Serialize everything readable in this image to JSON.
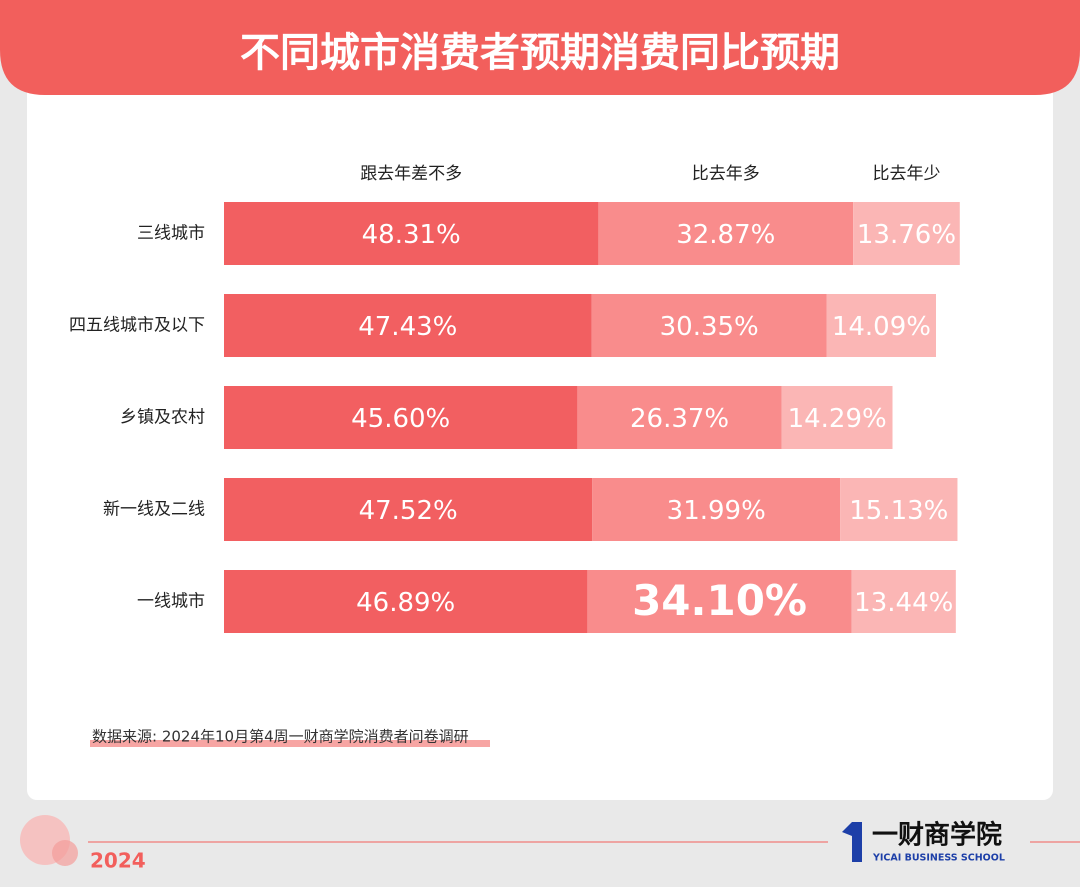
{
  "chart_data": {
    "type": "stacked-bar-horizontal",
    "title": "不同城市消费者预期消费同比预期",
    "categories": [
      "三线城市",
      "四五线城市及以下",
      "乡镇及农村",
      "新一线及二线",
      "一线城市"
    ],
    "series": [
      {
        "name": "跟去年差不多",
        "color": "#f25f61",
        "values": [
          48.31,
          47.43,
          45.6,
          47.52,
          46.89
        ],
        "value_labels": [
          "48.31%",
          "47.43%",
          "45.60%",
          "47.52%",
          "46.89%"
        ]
      },
      {
        "name": "比去年多",
        "color": "#f98c8c",
        "values": [
          32.87,
          30.35,
          26.37,
          31.99,
          34.1
        ],
        "value_labels": [
          "32.87%",
          "30.35%",
          "26.37%",
          "31.99%",
          "34.10%"
        ]
      },
      {
        "name": "比去年少",
        "color": "#fbb6b5",
        "values": [
          13.76,
          14.09,
          14.29,
          15.13,
          13.44
        ],
        "value_labels": [
          "13.76%",
          "14.09%",
          "14.29%",
          "15.13%",
          "13.44%"
        ]
      }
    ],
    "source": "数据来源: 2024年10月第4周一财商学院消费者问卷调研"
  },
  "footer": {
    "year": "2024",
    "brand": "一财商学院",
    "brand_en": "YICAI BUSINESS SCHOOL"
  }
}
